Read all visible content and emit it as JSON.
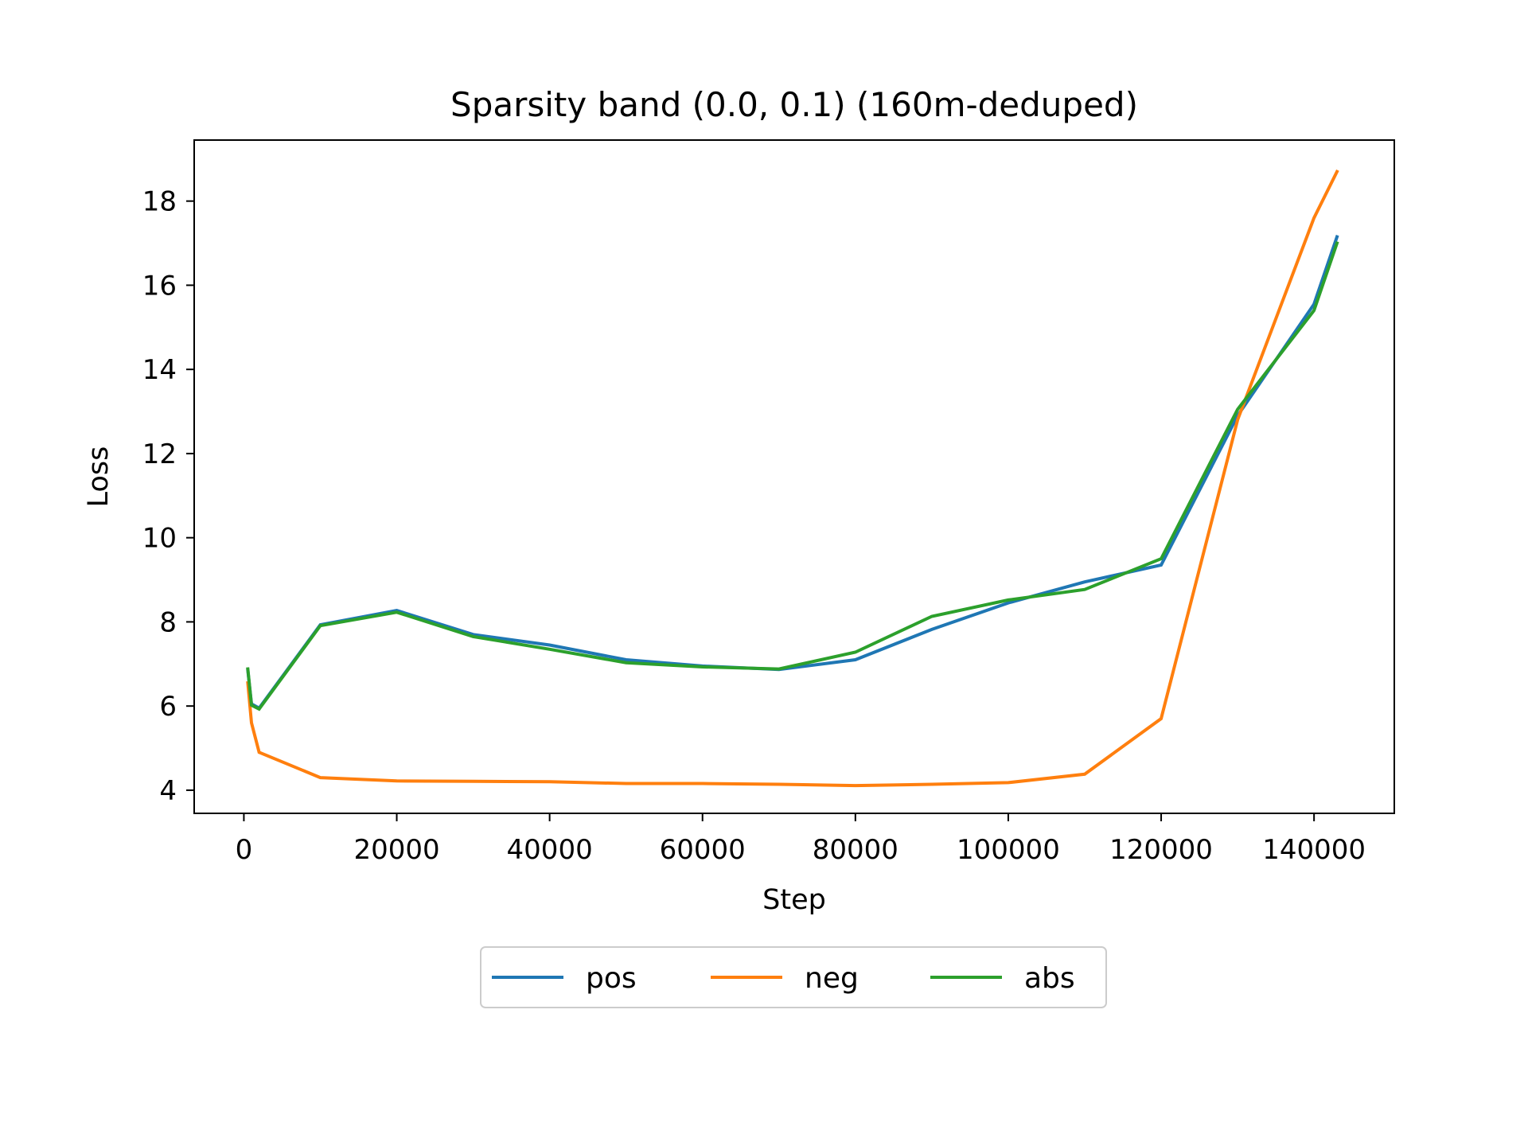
{
  "chart_data": {
    "type": "line",
    "title": "Sparsity band (0.0, 0.1) (160m-deduped)",
    "xlabel": "Step",
    "ylabel": "Loss",
    "xlim": [
      -6500,
      150500
    ],
    "ylim": [
      3.45,
      19.45
    ],
    "xticks": [
      0,
      20000,
      40000,
      60000,
      80000,
      100000,
      120000,
      140000
    ],
    "yticks": [
      4,
      6,
      8,
      10,
      12,
      14,
      16,
      18
    ],
    "grid": false,
    "legend": {
      "placement": "bottom-center",
      "columns": 3
    },
    "series": [
      {
        "name": "pos",
        "color": "#1f77b4",
        "x": [
          512,
          1000,
          2000,
          10000,
          20000,
          30000,
          40000,
          50000,
          60000,
          70000,
          80000,
          90000,
          100000,
          110000,
          120000,
          130000,
          140000,
          143000
        ],
        "y": [
          6.85,
          6.05,
          5.95,
          7.93,
          8.27,
          7.7,
          7.45,
          7.1,
          6.95,
          6.87,
          7.1,
          7.82,
          8.45,
          8.95,
          9.35,
          12.9,
          15.55,
          17.15
        ]
      },
      {
        "name": "neg",
        "color": "#ff7f0e",
        "x": [
          512,
          1000,
          2000,
          10000,
          20000,
          30000,
          40000,
          50000,
          60000,
          70000,
          80000,
          90000,
          100000,
          110000,
          120000,
          130000,
          140000,
          143000
        ],
        "y": [
          6.55,
          5.6,
          4.9,
          4.3,
          4.22,
          4.21,
          4.2,
          4.16,
          4.16,
          4.14,
          4.11,
          4.14,
          4.18,
          4.38,
          5.7,
          12.8,
          17.6,
          18.7
        ]
      },
      {
        "name": "abs",
        "color": "#2ca02c",
        "x": [
          512,
          1000,
          2000,
          10000,
          20000,
          30000,
          40000,
          50000,
          60000,
          70000,
          80000,
          90000,
          100000,
          110000,
          120000,
          130000,
          140000,
          143000
        ],
        "y": [
          6.88,
          6.02,
          5.93,
          7.91,
          8.23,
          7.65,
          7.35,
          7.03,
          6.93,
          6.88,
          7.28,
          8.13,
          8.52,
          8.77,
          9.5,
          13.05,
          15.4,
          17.0
        ]
      }
    ]
  }
}
